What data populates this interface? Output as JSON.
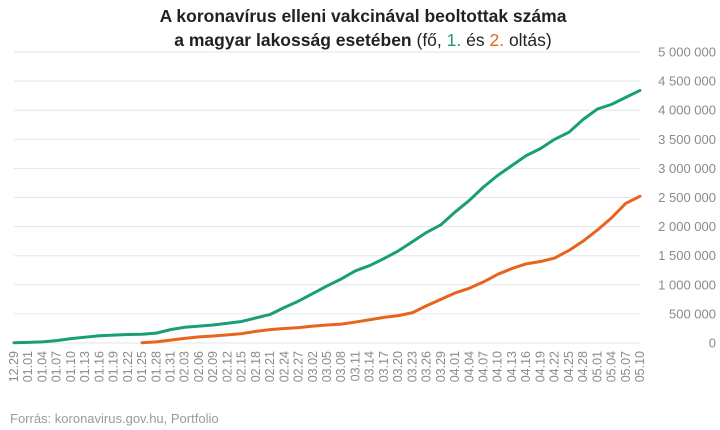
{
  "title": {
    "line1": "A koronavírus elleni vakcinával beoltottak száma",
    "line2_bold": "a magyar lakosság esetében",
    "line2_open": " (fő, ",
    "dose1_label": "1.",
    "line2_mid": " és ",
    "dose2_label": "2.",
    "line2_close": " oltás)"
  },
  "source": "Forrás: koronavirus.gov.hu, Portfolio",
  "colors": {
    "dose1": "#1a9e78",
    "dose2": "#e8641c",
    "grid": "#e6e6e6",
    "text": "#222222",
    "ticks": "#8a8a8a"
  },
  "chart_data": {
    "type": "line",
    "x": [
      "12.29",
      "01.01",
      "01.04",
      "01.07",
      "01.10",
      "01.13",
      "01.16",
      "01.19",
      "01.22",
      "01.25",
      "01.28",
      "01.31",
      "02.03",
      "02.06",
      "02.09",
      "02.12",
      "02.15",
      "02.18",
      "02.21",
      "02.24",
      "02.27",
      "03.02",
      "03.05",
      "03.08",
      "03.11",
      "03.14",
      "03.17",
      "03.20",
      "03.23",
      "03.26",
      "03.29",
      "04.01",
      "04.04",
      "04.07",
      "04.10",
      "04.13",
      "04.16",
      "04.19",
      "04.22",
      "04.25",
      "04.28",
      "05.01",
      "05.04",
      "05.07",
      "05.10"
    ],
    "x_tick_labels": [
      "12.29",
      "01.01",
      "01.04",
      "01.07",
      "01.10",
      "01.13",
      "01.16",
      "01.19",
      "01.22",
      "01.25",
      "01.28",
      "01.31",
      "02.03",
      "02.06",
      "02.09",
      "02.12",
      "02.15",
      "02.18",
      "02.21",
      "02.24",
      "02.27",
      "03.02",
      "03.05",
      "03.08",
      "03.11",
      "03.14",
      "03.17",
      "03.20",
      "03.23",
      "03.26",
      "03.29",
      "04.01",
      "04.04",
      "04.07",
      "04.10",
      "04.13",
      "04.16",
      "04.19",
      "04.22",
      "04.25",
      "04.28",
      "05.01",
      "05.04",
      "05.07",
      "05.10"
    ],
    "y_tick_labels": [
      "0",
      "500 000",
      "1 000 000",
      "1 500 000",
      "2 000 000",
      "2 500 000",
      "3 000 000",
      "3 500 000",
      "4 000 000",
      "4 500 000",
      "5 000 000"
    ],
    "ylim": [
      0,
      5000000
    ],
    "grid": true,
    "series": [
      {
        "key": "dose1",
        "values": [
          5000,
          10000,
          20000,
          40000,
          75000,
          100000,
          125000,
          135000,
          145000,
          150000,
          170000,
          230000,
          270000,
          290000,
          310000,
          340000,
          370000,
          430000,
          490000,
          610000,
          720000,
          850000,
          980000,
          1100000,
          1240000,
          1330000,
          1450000,
          1580000,
          1740000,
          1900000,
          2030000,
          2250000,
          2450000,
          2680000,
          2880000,
          3050000,
          3220000,
          3340000,
          3500000,
          3620000,
          3840000,
          4020000,
          4100000,
          4220000,
          4340000
        ]
      },
      {
        "key": "dose2",
        "values": [
          null,
          null,
          null,
          null,
          null,
          null,
          null,
          null,
          null,
          5000,
          20000,
          50000,
          80000,
          105000,
          120000,
          140000,
          160000,
          200000,
          230000,
          250000,
          265000,
          290000,
          310000,
          325000,
          360000,
          400000,
          440000,
          470000,
          520000,
          640000,
          750000,
          860000,
          940000,
          1050000,
          1180000,
          1280000,
          1360000,
          1400000,
          1460000,
          1590000,
          1750000,
          1940000,
          2150000,
          2400000,
          2520000
        ]
      }
    ]
  }
}
